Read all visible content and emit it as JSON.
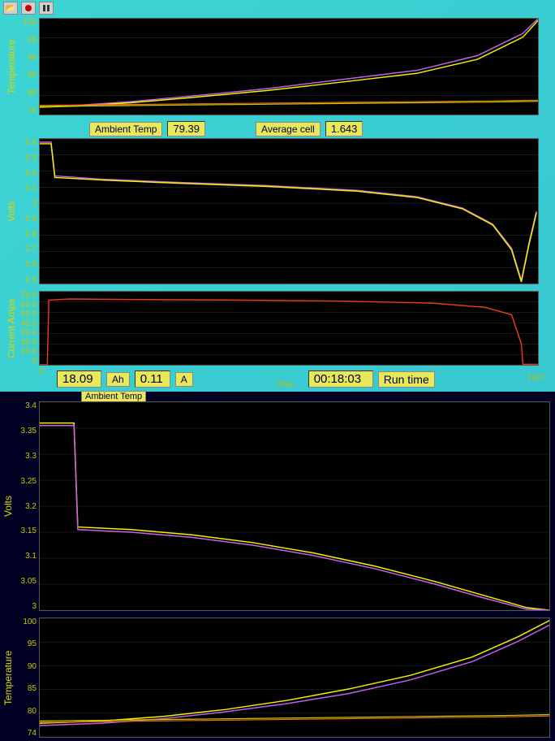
{
  "toolbar": {
    "present": true
  },
  "upper": {
    "background_color": "#3dd4d4",
    "temp_chart": {
      "type": "line",
      "ylabel": "Temperature",
      "ylim": [
        74,
        100
      ],
      "yticks": [
        100,
        95,
        90,
        85,
        80,
        74
      ],
      "plot_bg": "#000000",
      "series": [
        {
          "color": "#c060e8",
          "width": 1.5,
          "points": [
            [
              0,
              76
            ],
            [
              50,
              76.5
            ],
            [
              120,
              77.5
            ],
            [
              200,
              79
            ],
            [
              300,
              81
            ],
            [
              400,
              83.5
            ],
            [
              500,
              86
            ],
            [
              580,
              90
            ],
            [
              640,
              96
            ],
            [
              660,
              100
            ]
          ]
        },
        {
          "color": "#f2f200",
          "width": 1.5,
          "points": [
            [
              0,
              76
            ],
            [
              50,
              76.3
            ],
            [
              120,
              77.2
            ],
            [
              200,
              78.6
            ],
            [
              300,
              80.5
            ],
            [
              400,
              82.8
            ],
            [
              500,
              85.2
            ],
            [
              580,
              89
            ],
            [
              640,
              95
            ],
            [
              660,
              99.5
            ]
          ]
        },
        {
          "color": "#e86a1a",
          "width": 1.2,
          "points": [
            [
              0,
              76.5
            ],
            [
              100,
              76.7
            ],
            [
              200,
              76.9
            ],
            [
              300,
              77.1
            ],
            [
              400,
              77.3
            ],
            [
              500,
              77.5
            ],
            [
              600,
              77.7
            ],
            [
              660,
              77.9
            ]
          ]
        },
        {
          "color": "#c8c800",
          "width": 1.2,
          "points": [
            [
              0,
              76.2
            ],
            [
              100,
              76.4
            ],
            [
              200,
              76.6
            ],
            [
              300,
              76.8
            ],
            [
              400,
              77.0
            ],
            [
              500,
              77.2
            ],
            [
              600,
              77.4
            ],
            [
              660,
              77.6
            ]
          ]
        }
      ]
    },
    "ambient_row": {
      "ambient_label": "Ambient Temp",
      "ambient_value": "79.39",
      "avgcell_label": "Average cell",
      "avgcell_value": "1.643"
    },
    "volts_chart": {
      "type": "line",
      "ylabel": "Volts",
      "ylim": [
        2.5,
        3.4
      ],
      "yticks": [
        "3.4",
        "3.3",
        "3.2",
        "3.1",
        "3",
        "2.9",
        "2.8",
        "2.7",
        "2.6",
        "2.5"
      ],
      "plot_bg": "#000000",
      "series": [
        {
          "color": "#c060e8",
          "width": 1.5,
          "points": [
            [
              0,
              3.38
            ],
            [
              15,
              3.38
            ],
            [
              20,
              3.17
            ],
            [
              80,
              3.15
            ],
            [
              180,
              3.13
            ],
            [
              300,
              3.11
            ],
            [
              420,
              3.08
            ],
            [
              500,
              3.04
            ],
            [
              560,
              2.97
            ],
            [
              600,
              2.87
            ],
            [
              625,
              2.72
            ],
            [
              638,
              2.52
            ],
            [
              648,
              2.75
            ],
            [
              658,
              2.95
            ]
          ]
        },
        {
          "color": "#f2f200",
          "width": 1.5,
          "points": [
            [
              0,
              3.37
            ],
            [
              15,
              3.37
            ],
            [
              20,
              3.16
            ],
            [
              80,
              3.145
            ],
            [
              180,
              3.125
            ],
            [
              300,
              3.105
            ],
            [
              420,
              3.075
            ],
            [
              500,
              3.035
            ],
            [
              560,
              2.965
            ],
            [
              600,
              2.865
            ],
            [
              625,
              2.71
            ],
            [
              638,
              2.51
            ],
            [
              648,
              2.74
            ],
            [
              658,
              2.94
            ]
          ]
        }
      ]
    },
    "amps_chart": {
      "type": "line",
      "ylabel": "Current Amps",
      "ylim": [
        0,
        70
      ],
      "yticks": [
        "70.0",
        "60.0",
        "50.0",
        "40.0",
        "30.0",
        "20.0",
        "10.0",
        "0"
      ],
      "plot_bg": "#000000",
      "series": [
        {
          "color": "#e23c1a",
          "width": 1.5,
          "points": [
            [
              0,
              0
            ],
            [
              10,
              0
            ],
            [
              12,
              62
            ],
            [
              40,
              63
            ],
            [
              120,
              62.5
            ],
            [
              250,
              62
            ],
            [
              400,
              61
            ],
            [
              520,
              59
            ],
            [
              590,
              55
            ],
            [
              625,
              48
            ],
            [
              638,
              20
            ],
            [
              640,
              0.5
            ],
            [
              660,
              0.5
            ]
          ]
        }
      ],
      "xlabel": "Time",
      "x_left": "0",
      "x_right": "1107"
    },
    "bottom_row": {
      "ah_value": "18.09",
      "ah_label": "Ah",
      "a_value": "0.11",
      "a_label": "A",
      "runtime_value": "00:18:03",
      "runtime_label": "Run time"
    }
  },
  "lower": {
    "ambient_strip_label": "Ambient Temp",
    "volts_chart": {
      "type": "line",
      "ylabel": "Volts",
      "ylim": [
        3.0,
        3.4
      ],
      "yticks": [
        "3.4",
        "3.35",
        "3.3",
        "3.25",
        "3.2",
        "3.15",
        "3.1",
        "3.05",
        "3"
      ],
      "plot_bg": "#000000",
      "series": [
        {
          "color": "#f2f200",
          "width": 1.5,
          "points": [
            [
              0,
              3.36
            ],
            [
              45,
              3.36
            ],
            [
              50,
              3.16
            ],
            [
              120,
              3.155
            ],
            [
              200,
              3.145
            ],
            [
              280,
              3.13
            ],
            [
              360,
              3.11
            ],
            [
              440,
              3.085
            ],
            [
              520,
              3.055
            ],
            [
              580,
              3.03
            ],
            [
              640,
              3.005
            ],
            [
              670,
              3.0
            ]
          ]
        },
        {
          "color": "#d060e8",
          "width": 1.5,
          "points": [
            [
              0,
              3.355
            ],
            [
              45,
              3.355
            ],
            [
              50,
              3.155
            ],
            [
              120,
              3.15
            ],
            [
              200,
              3.14
            ],
            [
              280,
              3.125
            ],
            [
              360,
              3.105
            ],
            [
              440,
              3.08
            ],
            [
              520,
              3.05
            ],
            [
              580,
              3.025
            ],
            [
              640,
              3.002
            ],
            [
              670,
              3.0
            ]
          ]
        }
      ]
    },
    "temp_chart": {
      "type": "line",
      "ylabel": "Temperature",
      "ylim": [
        74,
        100
      ],
      "yticks": [
        "100",
        "95",
        "90",
        "85",
        "80",
        "74"
      ],
      "plot_bg": "#000000",
      "series": [
        {
          "color": "#f2f200",
          "width": 1.5,
          "points": [
            [
              0,
              77
            ],
            [
              80,
              77.5
            ],
            [
              160,
              78.5
            ],
            [
              240,
              80
            ],
            [
              320,
              82
            ],
            [
              400,
              84.5
            ],
            [
              480,
              87.5
            ],
            [
              560,
              91.5
            ],
            [
              620,
              96
            ],
            [
              660,
              99.5
            ]
          ]
        },
        {
          "color": "#c060e8",
          "width": 1.5,
          "points": [
            [
              0,
              76.5
            ],
            [
              80,
              77
            ],
            [
              160,
              78
            ],
            [
              240,
              79.5
            ],
            [
              320,
              81.3
            ],
            [
              400,
              83.5
            ],
            [
              480,
              86.5
            ],
            [
              560,
              90.5
            ],
            [
              620,
              95
            ],
            [
              660,
              98.5
            ]
          ]
        },
        {
          "color": "#c8c800",
          "width": 1.2,
          "points": [
            [
              0,
              77.5
            ],
            [
              100,
              77.7
            ],
            [
              200,
              77.9
            ],
            [
              300,
              78.1
            ],
            [
              400,
              78.3
            ],
            [
              500,
              78.5
            ],
            [
              600,
              78.7
            ],
            [
              660,
              78.9
            ]
          ]
        },
        {
          "color": "#e86a1a",
          "width": 1.2,
          "points": [
            [
              0,
              77.2
            ],
            [
              100,
              77.4
            ],
            [
              200,
              77.6
            ],
            [
              300,
              77.8
            ],
            [
              400,
              78.0
            ],
            [
              500,
              78.2
            ],
            [
              600,
              78.4
            ],
            [
              660,
              78.6
            ]
          ]
        }
      ]
    }
  }
}
